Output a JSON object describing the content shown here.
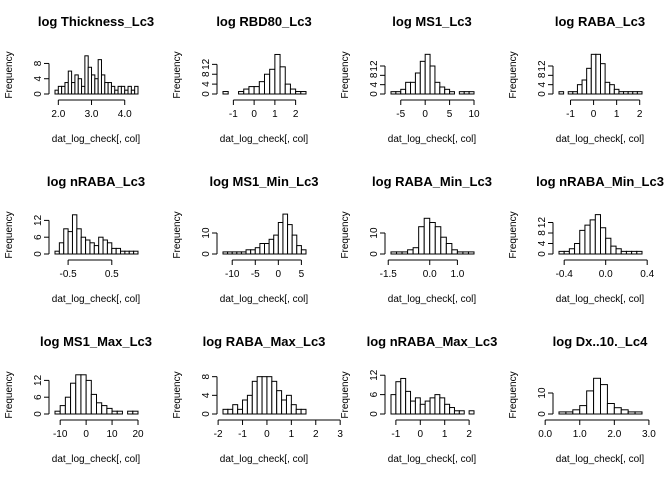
{
  "chart_data": [
    {
      "type": "bar",
      "title": "log Thickness_Lc3",
      "xlabel": "dat_log_check[, col]",
      "ylabel": "Frequency",
      "bin_start": 1.9,
      "bin_width": 0.1,
      "values": [
        1,
        2,
        2,
        3,
        6,
        3,
        5,
        4,
        2,
        10,
        7,
        5,
        4,
        9,
        5,
        3,
        3,
        2,
        1,
        2,
        2,
        1,
        2,
        1,
        2
      ],
      "xticks": [
        2.0,
        3.0,
        4.0
      ],
      "xtick_labels": [
        "2.0",
        "3.0",
        "4.0"
      ],
      "yticks": [
        0,
        4,
        8
      ],
      "ylim": [
        0,
        11
      ]
    },
    {
      "type": "bar",
      "title": "log RBD80_Lc3",
      "xlabel": "dat_log_check[, col]",
      "ylabel": "Frequency",
      "bin_start": -1.5,
      "bin_width": 0.25,
      "values": [
        1,
        0,
        0,
        1,
        2,
        3,
        3,
        5,
        8,
        10,
        16,
        11,
        4,
        2,
        1,
        1
      ],
      "xticks": [
        -1,
        0,
        1,
        2
      ],
      "xtick_labels": [
        "-1",
        "0",
        "1",
        "2"
      ],
      "yticks": [
        0,
        4,
        8,
        12
      ],
      "ylim": [
        0,
        17
      ]
    },
    {
      "type": "bar",
      "title": "log MS1_Lc3",
      "xlabel": "dat_log_check[, col]",
      "ylabel": "Frequency",
      "bin_start": -7,
      "bin_width": 1,
      "values": [
        1,
        1,
        2,
        5,
        5,
        9,
        14,
        17,
        12,
        5,
        3,
        2,
        1,
        0,
        1,
        1,
        1
      ],
      "xticks": [
        -5,
        0,
        5,
        10
      ],
      "xtick_labels": [
        "-5",
        "0",
        "5",
        "10"
      ],
      "yticks": [
        0,
        4,
        8,
        12
      ],
      "ylim": [
        0,
        18
      ]
    },
    {
      "type": "bar",
      "title": "log RABA_Lc3",
      "xlabel": "dat_log_check[, col]",
      "ylabel": "Frequency",
      "bin_start": -1.5,
      "bin_width": 0.2,
      "values": [
        1,
        0,
        1,
        1,
        4,
        6,
        11,
        17,
        17,
        13,
        5,
        4,
        2,
        1,
        1,
        1,
        1,
        1
      ],
      "xticks": [
        -1,
        0,
        1,
        2
      ],
      "xtick_labels": [
        "-1",
        "0",
        "1",
        "2"
      ],
      "yticks": [
        0,
        4,
        8,
        12
      ],
      "ylim": [
        0,
        18
      ]
    },
    {
      "type": "bar",
      "title": "log nRABA_Lc3",
      "xlabel": "dat_log_check[, col]",
      "ylabel": "Frequency",
      "bin_start": -0.8,
      "bin_width": 0.1,
      "values": [
        1,
        4,
        9,
        8,
        14,
        9,
        6,
        5,
        4,
        3,
        6,
        5,
        4,
        2,
        2,
        1,
        1,
        1,
        1
      ],
      "xticks": [
        -0.5,
        0.5
      ],
      "xtick_labels": [
        "-0.5",
        "0.5"
      ],
      "yticks": [
        0,
        6,
        12
      ],
      "ylim": [
        0,
        15
      ]
    },
    {
      "type": "bar",
      "title": "log MS1_Min_Lc3",
      "xlabel": "dat_log_check[, col]",
      "ylabel": "Frequency",
      "bin_start": -12,
      "bin_width": 1,
      "values": [
        1,
        1,
        1,
        1,
        1,
        2,
        2,
        3,
        5,
        5,
        7,
        9,
        15,
        19,
        14,
        9,
        4,
        2
      ],
      "xticks": [
        -10,
        -5,
        0,
        5
      ],
      "xtick_labels": [
        "-10",
        "-5",
        "0",
        "5"
      ],
      "yticks": [
        0,
        10
      ],
      "ylim": [
        0,
        20
      ]
    },
    {
      "type": "bar",
      "title": "log RABA_Min_Lc3",
      "xlabel": "dat_log_check[, col]",
      "ylabel": "Frequency",
      "bin_start": -1.4,
      "bin_width": 0.2,
      "values": [
        1,
        1,
        1,
        2,
        3,
        13,
        17,
        15,
        13,
        8,
        5,
        2,
        1,
        1,
        1
      ],
      "xticks": [
        -1.5,
        0.0,
        1.0
      ],
      "xtick_labels": [
        "-1.5",
        "0.0",
        "1.0"
      ],
      "yticks": [
        0,
        10
      ],
      "ylim": [
        0,
        20
      ]
    },
    {
      "type": "bar",
      "title": "log nRABA_Min_Lc3",
      "xlabel": "dat_log_check[, col]",
      "ylabel": "Frequency",
      "bin_start": -0.45,
      "bin_width": 0.05,
      "values": [
        1,
        1,
        2,
        4,
        9,
        11,
        13,
        15,
        10,
        6,
        3,
        2,
        1,
        1,
        1,
        1
      ],
      "xticks": [
        -0.4,
        0.0,
        0.4
      ],
      "xtick_labels": [
        "-0.4",
        "0.0",
        "0.4"
      ],
      "yticks": [
        0,
        4,
        8,
        12
      ],
      "ylim": [
        0,
        16
      ]
    },
    {
      "type": "bar",
      "title": "log MS1_Max_Lc3",
      "xlabel": "dat_log_check[, col]",
      "ylabel": "Frequency",
      "bin_start": -12,
      "bin_width": 2,
      "values": [
        1,
        3,
        6,
        11,
        14,
        14,
        12,
        7,
        4,
        3,
        2,
        1,
        1,
        0,
        1,
        1
      ],
      "xticks": [
        -10,
        0,
        10,
        20
      ],
      "xtick_labels": [
        "-10",
        "0",
        "10",
        "20"
      ],
      "yticks": [
        0,
        6,
        12
      ],
      "ylim": [
        0,
        15
      ]
    },
    {
      "type": "bar",
      "title": "log RABA_Max_Lc3",
      "xlabel": "dat_log_check[, col]",
      "ylabel": "Frequency",
      "bin_start": -1.8,
      "bin_width": 0.2,
      "values": [
        1,
        1,
        2,
        1,
        3,
        4,
        7,
        8,
        8,
        8,
        7,
        5,
        3,
        4,
        2,
        1,
        1
      ],
      "xticks": [
        -2,
        -1,
        0,
        1,
        2,
        3
      ],
      "xtick_labels": [
        "-2",
        "-1",
        "0",
        "1",
        "2",
        "3"
      ],
      "yticks": [
        0,
        4,
        8
      ],
      "ylim": [
        0,
        9
      ]
    },
    {
      "type": "bar",
      "title": "log nRABA_Max_Lc3",
      "xlabel": "dat_log_check[, col]",
      "ylabel": "Frequency",
      "bin_start": -1.2,
      "bin_width": 0.2,
      "values": [
        6,
        10,
        11,
        7,
        4,
        5,
        3,
        4,
        5,
        6,
        5,
        3,
        2,
        1,
        1,
        0,
        1
      ],
      "xticks": [
        -1,
        0,
        1,
        2
      ],
      "xtick_labels": [
        "-1",
        "0",
        "1",
        "2"
      ],
      "yticks": [
        0,
        6,
        12
      ],
      "ylim": [
        0,
        13
      ]
    },
    {
      "type": "bar",
      "title": "log Dx..10._Lc4",
      "xlabel": "dat_log_check[, col]",
      "ylabel": "Frequency",
      "bin_start": 0.4,
      "bin_width": 0.2,
      "values": [
        1,
        1,
        2,
        4,
        11,
        17,
        14,
        5,
        3,
        2,
        1,
        1
      ],
      "xticks": [
        0.0,
        1.0,
        2.0,
        3.0
      ],
      "xtick_labels": [
        "0.0",
        "1.0",
        "2.0",
        "3.0"
      ],
      "yticks": [
        0,
        10
      ],
      "ylim": [
        0,
        20
      ]
    }
  ]
}
